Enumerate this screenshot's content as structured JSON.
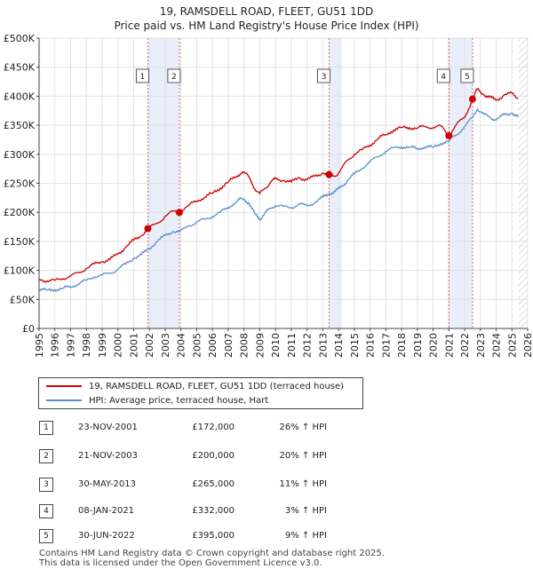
{
  "chart_data": {
    "type": "line",
    "title": "19, RAMSDELL ROAD, FLEET, GU51 1DD",
    "subtitle": "Price paid vs. HM Land Registry's House Price Index (HPI)",
    "xlim": [
      1995,
      2026
    ],
    "ylim": [
      0,
      500000
    ],
    "y_ticks": [
      0,
      50000,
      100000,
      150000,
      200000,
      250000,
      300000,
      350000,
      400000,
      450000,
      500000
    ],
    "y_tick_labels": [
      "£0",
      "£50K",
      "£100K",
      "£150K",
      "£200K",
      "£250K",
      "£300K",
      "£350K",
      "£400K",
      "£450K",
      "£500K"
    ],
    "x_ticks": [
      1995,
      1996,
      1997,
      1998,
      1999,
      2000,
      2001,
      2002,
      2003,
      2004,
      2005,
      2006,
      2007,
      2008,
      2009,
      2010,
      2011,
      2012,
      2013,
      2014,
      2015,
      2016,
      2017,
      2018,
      2019,
      2020,
      2021,
      2022,
      2023,
      2024,
      2025,
      2026
    ],
    "series": [
      {
        "name": "19, RAMSDELL ROAD, FLEET, GU51 1DD (terraced house)",
        "color": "#cc0000",
        "x": [
          1995.0,
          1995.5,
          1996.0,
          1996.5,
          1997.0,
          1997.5,
          1998.0,
          1998.5,
          1999.0,
          1999.5,
          2000.0,
          2000.5,
          2001.0,
          2001.5,
          2001.9,
          2002.5,
          2003.0,
          2003.5,
          2003.9,
          2004.5,
          2005.0,
          2005.5,
          2006.0,
          2006.5,
          2007.0,
          2007.5,
          2007.9,
          2008.3,
          2008.7,
          2009.0,
          2009.3,
          2009.7,
          2010.0,
          2010.5,
          2011.0,
          2011.5,
          2012.0,
          2012.5,
          2013.0,
          2013.4,
          2013.8,
          2014.2,
          2014.6,
          2015.0,
          2015.5,
          2016.0,
          2016.5,
          2017.0,
          2017.5,
          2018.0,
          2018.5,
          2019.0,
          2019.5,
          2020.0,
          2020.5,
          2021.0,
          2021.5,
          2022.0,
          2022.5,
          2022.8,
          2023.2,
          2023.6,
          2024.0,
          2024.5,
          2025.0,
          2025.4
        ],
        "values": [
          85000,
          82000,
          83000,
          86000,
          90000,
          96000,
          103000,
          111000,
          115000,
          119000,
          128000,
          140000,
          152000,
          160000,
          172000,
          181000,
          193000,
          202000,
          200000,
          212000,
          220000,
          226000,
          233000,
          242000,
          252000,
          262000,
          270000,
          262000,
          240000,
          232000,
          241000,
          252000,
          258000,
          255000,
          252000,
          260000,
          256000,
          262000,
          268000,
          265000,
          262000,
          276000,
          290000,
          300000,
          308000,
          316000,
          327000,
          334000,
          342000,
          346000,
          346000,
          345000,
          348000,
          346000,
          349000,
          332000,
          352000,
          363000,
          395000,
          412000,
          403000,
          398000,
          393000,
          402000,
          405000,
          396000
        ]
      },
      {
        "name": "HPI: Average price, terraced house, Hart",
        "color": "#5a8fcc",
        "x": [
          1995.0,
          1995.5,
          1996.0,
          1996.5,
          1997.0,
          1997.5,
          1998.0,
          1998.5,
          1999.0,
          1999.5,
          2000.0,
          2000.5,
          2001.0,
          2001.5,
          2001.9,
          2002.5,
          2003.0,
          2003.5,
          2003.9,
          2004.5,
          2005.0,
          2005.5,
          2006.0,
          2006.5,
          2007.0,
          2007.5,
          2007.9,
          2008.3,
          2008.7,
          2009.0,
          2009.3,
          2009.7,
          2010.0,
          2010.5,
          2011.0,
          2011.5,
          2012.0,
          2012.5,
          2013.0,
          2013.4,
          2013.8,
          2014.2,
          2014.6,
          2015.0,
          2015.5,
          2016.0,
          2016.5,
          2017.0,
          2017.5,
          2018.0,
          2018.5,
          2019.0,
          2019.5,
          2020.0,
          2020.5,
          2021.0,
          2021.5,
          2022.0,
          2022.5,
          2022.8,
          2023.2,
          2023.6,
          2024.0,
          2024.5,
          2025.0,
          2025.4
        ],
        "values": [
          67000,
          66000,
          67000,
          69000,
          72000,
          77000,
          83000,
          89000,
          92000,
          95000,
          102000,
          111000,
          121000,
          127000,
          136000,
          150000,
          160000,
          167000,
          166000,
          177000,
          183000,
          188000,
          193000,
          200000,
          209000,
          218000,
          224000,
          217000,
          197000,
          188000,
          198000,
          207000,
          212000,
          210000,
          208000,
          214000,
          211000,
          217000,
          226000,
          232000,
          236000,
          244000,
          256000,
          266000,
          276000,
          287000,
          296000,
          305000,
          311000,
          313000,
          312000,
          310000,
          313000,
          312000,
          319000,
          323000,
          334000,
          348000,
          363000,
          378000,
          369000,
          364000,
          359000,
          368000,
          371000,
          364000
        ]
      }
    ],
    "sales": [
      {
        "id": "1",
        "x": 2001.9,
        "value": 172000,
        "date": "23-NOV-2001",
        "price": "£172,000",
        "hpi": "26% ↑ HPI"
      },
      {
        "id": "2",
        "x": 2003.9,
        "value": 200000,
        "date": "21-NOV-2003",
        "price": "£200,000",
        "hpi": "20% ↑ HPI"
      },
      {
        "id": "3",
        "x": 2013.4,
        "value": 265000,
        "date": "30-MAY-2013",
        "price": "£265,000",
        "hpi": "11% ↑ HPI"
      },
      {
        "id": "4",
        "x": 2021.0,
        "value": 332000,
        "date": "08-JAN-2021",
        "price": "£332,000",
        "hpi": "3% ↑ HPI"
      },
      {
        "id": "5",
        "x": 2022.5,
        "value": 395000,
        "date": "30-JUN-2022",
        "price": "£395,000",
        "hpi": "9% ↑ HPI"
      }
    ],
    "shaded_ranges": [
      [
        2001.9,
        2003.9
      ],
      [
        2013.4,
        2014.2
      ],
      [
        2021.0,
        2022.5
      ]
    ],
    "future_hatch_from": 2025.4,
    "grid": true
  },
  "legend": {
    "property_label": "19, RAMSDELL ROAD, FLEET, GU51 1DD (terraced house)",
    "hpi_label": "HPI: Average price, terraced house, Hart"
  },
  "footer": {
    "line1": "Contains HM Land Registry data © Crown copyright and database right 2025.",
    "line2": "This data is licensed under the Open Government Licence v3.0."
  }
}
